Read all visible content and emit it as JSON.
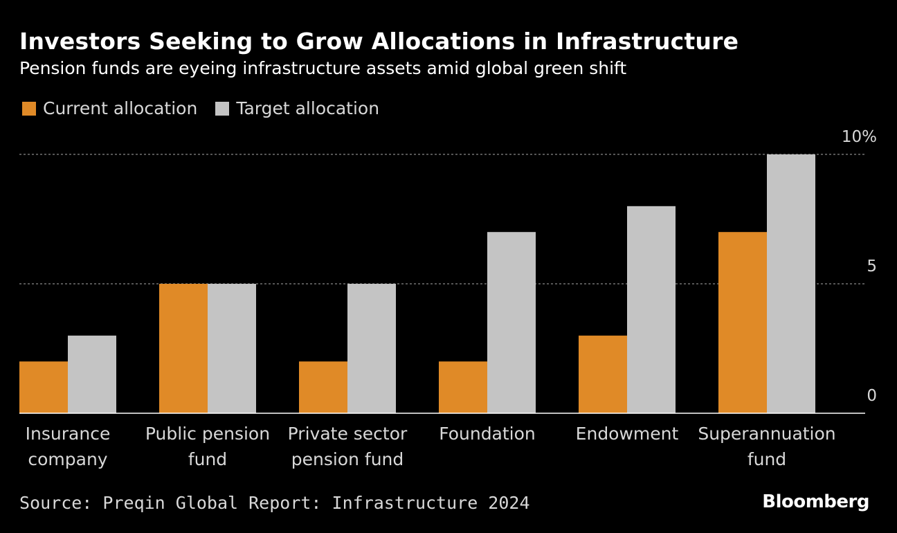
{
  "colors": {
    "current": "#e08a27",
    "target": "#c4c4c4",
    "grid": "#8a8a8a",
    "axis": "#ffffff"
  },
  "chart_data": {
    "type": "bar",
    "title": "Investors Seeking to Grow Allocations in Infrastructure",
    "subtitle": "Pension funds are eyeing infrastructure assets amid global green shift",
    "categories": [
      [
        "Insurance",
        "company"
      ],
      [
        "Public pension",
        "fund"
      ],
      [
        "Private sector",
        "pension fund"
      ],
      [
        "Foundation"
      ],
      [
        "Endowment"
      ],
      [
        "Superannuation",
        "fund"
      ]
    ],
    "series": [
      {
        "name": "Current allocation",
        "values": [
          2,
          5,
          2,
          2,
          3,
          7
        ]
      },
      {
        "name": "Target allocation",
        "values": [
          3,
          5,
          5,
          7,
          8,
          10
        ]
      }
    ],
    "yticks": [
      {
        "value": 10,
        "label": "10%"
      },
      {
        "value": 5,
        "label": "5"
      },
      {
        "value": 0,
        "label": "0"
      }
    ],
    "ylim": [
      0,
      10
    ],
    "grid": true,
    "legend_position": "top-left"
  },
  "footer": {
    "source": "Source: Preqin Global Report: Infrastructure 2024",
    "logo": "Bloomberg"
  }
}
